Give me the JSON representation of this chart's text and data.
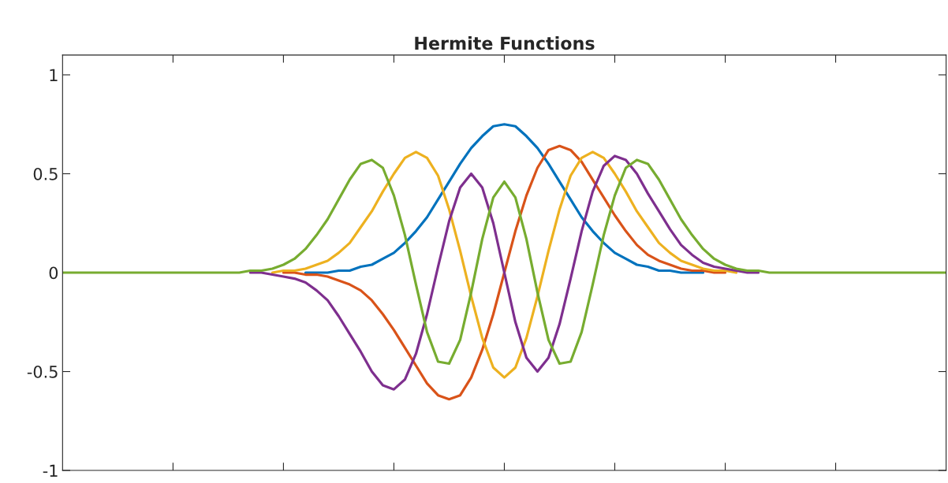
{
  "chart_data": {
    "type": "line",
    "title": "Hermite Functions",
    "categories": [
      null,
      null,
      null,
      null,
      null,
      null,
      null,
      null,
      null,
      null,
      null,
      null,
      null,
      null,
      null,
      null,
      null,
      null,
      null,
      null,
      null,
      null,
      null,
      null,
      null,
      null,
      null,
      null,
      null,
      null,
      null,
      null,
      null,
      null,
      null,
      null,
      null,
      null,
      null,
      null,
      null,
      null,
      null,
      null,
      null,
      null,
      null,
      null,
      null,
      null,
      null,
      null,
      null,
      null,
      null,
      null,
      null,
      null,
      null,
      null,
      null,
      null,
      null,
      null,
      null,
      null,
      null,
      null,
      null,
      null,
      null,
      null,
      null,
      null,
      null,
      null,
      null,
      null,
      null,
      null,
      null
    ],
    "series": [
      {
        "color": "#0072bd",
        "values": [
          null,
          null,
          null,
          null,
          null,
          null,
          null,
          null,
          null,
          null,
          null,
          null,
          null,
          null,
          null,
          null,
          null,
          null,
          null,
          null,
          null,
          null,
          0,
          0,
          0,
          0.01,
          0.01,
          0.03,
          0.04,
          0.07,
          0.1,
          0.15,
          0.21,
          0.28,
          0.37,
          0.46,
          0.55,
          0.63,
          0.69,
          0.74,
          0.75,
          0.74,
          0.69,
          0.63,
          0.55,
          0.46,
          0.37,
          0.28,
          0.21,
          0.15,
          0.1,
          0.07,
          0.04,
          0.03,
          0.01,
          0.01,
          0,
          0,
          0,
          null,
          null,
          null,
          null,
          null,
          null,
          null,
          null,
          null,
          null,
          null,
          null,
          null,
          null,
          null,
          null,
          null,
          null,
          null,
          null,
          null,
          null
        ]
      },
      {
        "color": "#d95319",
        "values": [
          null,
          null,
          null,
          null,
          null,
          null,
          null,
          null,
          null,
          null,
          null,
          null,
          null,
          null,
          null,
          null,
          null,
          null,
          null,
          null,
          0,
          0,
          -0.01,
          -0.01,
          -0.02,
          -0.04,
          -0.06,
          -0.09,
          -0.14,
          -0.21,
          -0.29,
          -0.38,
          -0.47,
          -0.56,
          -0.62,
          -0.64,
          -0.62,
          -0.53,
          -0.39,
          -0.21,
          0,
          0.21,
          0.39,
          0.53,
          0.62,
          0.64,
          0.62,
          0.56,
          0.47,
          0.38,
          0.29,
          0.21,
          0.14,
          0.09,
          0.06,
          0.04,
          0.02,
          0.01,
          0.01,
          0,
          0,
          null,
          null,
          null,
          null,
          null,
          null,
          null,
          null,
          null,
          null,
          null,
          null,
          null,
          null,
          null,
          null,
          null,
          null,
          null,
          null
        ]
      },
      {
        "color": "#edb120",
        "values": [
          null,
          null,
          null,
          null,
          null,
          null,
          null,
          null,
          null,
          null,
          null,
          null,
          null,
          null,
          null,
          null,
          null,
          null,
          null,
          0,
          0.01,
          0.01,
          0.02,
          0.04,
          0.06,
          0.1,
          0.15,
          0.23,
          0.31,
          0.41,
          0.5,
          0.58,
          0.61,
          0.58,
          0.49,
          0.32,
          0.11,
          -0.12,
          -0.33,
          -0.48,
          -0.53,
          -0.48,
          -0.33,
          -0.12,
          0.11,
          0.32,
          0.49,
          0.58,
          0.61,
          0.58,
          0.5,
          0.41,
          0.31,
          0.23,
          0.15,
          0.1,
          0.06,
          0.04,
          0.02,
          0.01,
          0.01,
          0,
          null,
          null,
          null,
          null,
          null,
          null,
          null,
          null,
          null,
          null,
          null,
          null,
          null,
          null,
          null,
          null,
          null,
          null,
          null
        ]
      },
      {
        "color": "#7e2f8e",
        "values": [
          null,
          null,
          null,
          null,
          null,
          null,
          null,
          null,
          null,
          null,
          null,
          null,
          null,
          null,
          null,
          null,
          null,
          0,
          0,
          -0.01,
          -0.02,
          -0.03,
          -0.05,
          -0.09,
          -0.14,
          -0.22,
          -0.31,
          -0.4,
          -0.5,
          -0.57,
          -0.59,
          -0.54,
          -0.41,
          -0.21,
          0.03,
          0.26,
          0.43,
          0.5,
          0.43,
          0.25,
          0,
          -0.25,
          -0.43,
          -0.5,
          -0.43,
          -0.26,
          -0.03,
          0.21,
          0.41,
          0.54,
          0.59,
          0.57,
          0.5,
          0.4,
          0.31,
          0.22,
          0.14,
          0.09,
          0.05,
          0.03,
          0.02,
          0.01,
          0,
          0,
          null,
          null,
          null,
          null,
          null,
          null,
          null,
          null,
          null,
          null,
          null,
          null,
          null,
          null,
          null,
          null,
          null
        ]
      },
      {
        "color": "#77ac30",
        "values": [
          0,
          0,
          0,
          0,
          0,
          0,
          0,
          0,
          0,
          0,
          0,
          0,
          0,
          0,
          0,
          0,
          0,
          0.01,
          0.01,
          0.02,
          0.04,
          0.07,
          0.12,
          0.19,
          0.27,
          0.37,
          0.47,
          0.55,
          0.57,
          0.53,
          0.39,
          0.19,
          -0.06,
          -0.3,
          -0.45,
          -0.46,
          -0.34,
          -0.1,
          0.17,
          0.38,
          0.46,
          0.38,
          0.17,
          -0.1,
          -0.34,
          -0.46,
          -0.45,
          -0.3,
          -0.06,
          0.19,
          0.39,
          0.53,
          0.57,
          0.55,
          0.47,
          0.37,
          0.27,
          0.19,
          0.12,
          0.07,
          0.04,
          0.02,
          0.01,
          0.01,
          0,
          0,
          0,
          0,
          0,
          0,
          0,
          0,
          0,
          0,
          0,
          0,
          0,
          0,
          0,
          0,
          0
        ]
      }
    ],
    "ylim": [
      -1,
      1.1
    ],
    "yticks": [
      -1,
      -0.5,
      0,
      0.5,
      1
    ],
    "tick_labels": "y"
  }
}
